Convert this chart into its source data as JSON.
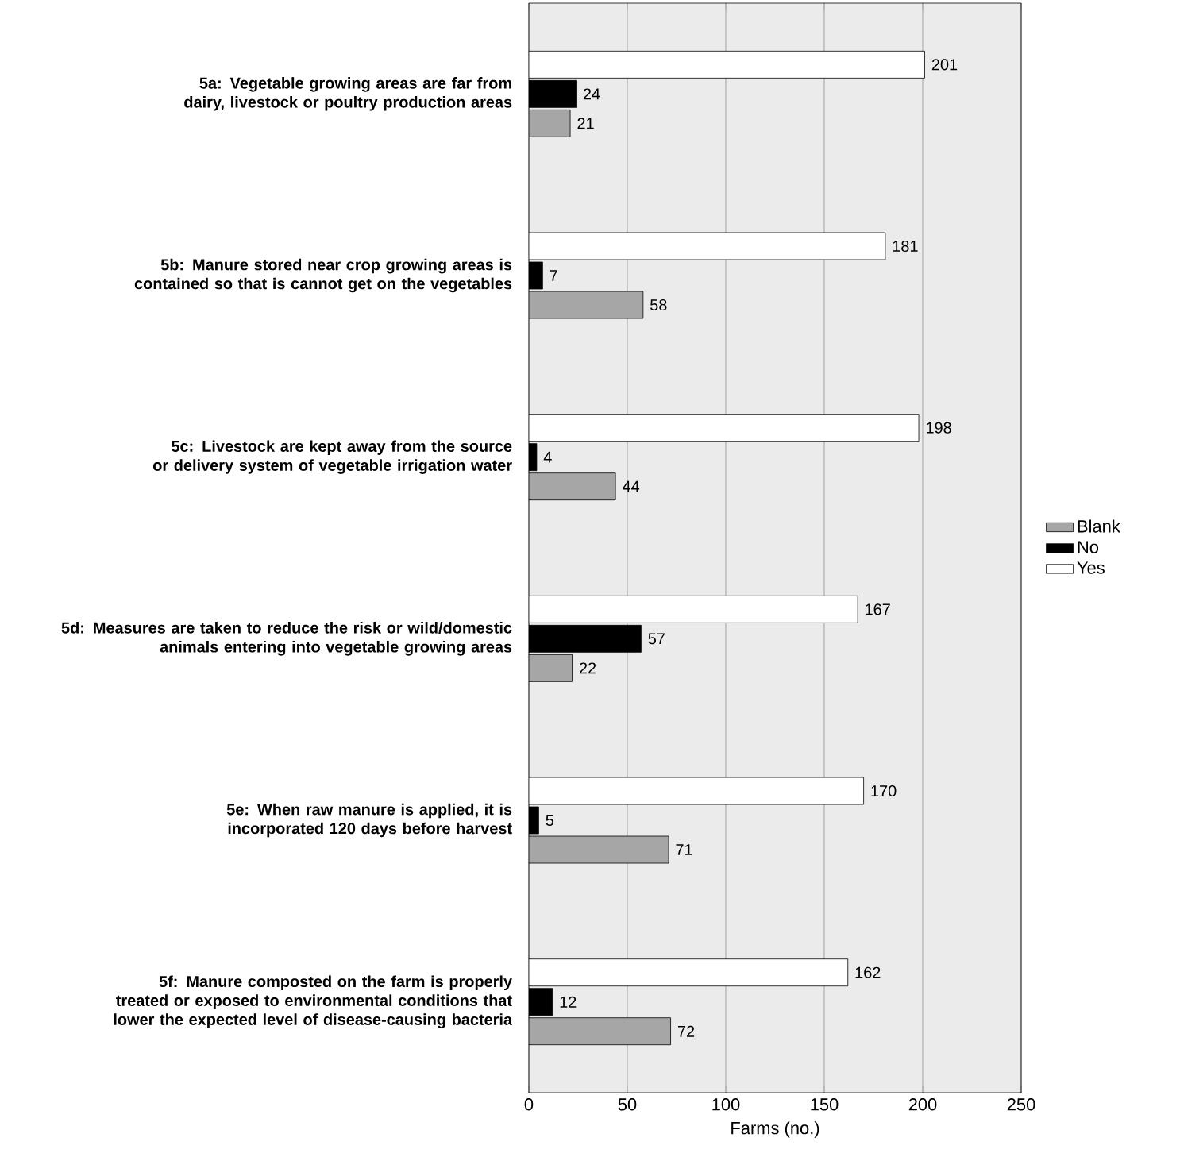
{
  "chart_data": {
    "type": "bar",
    "orientation": "horizontal",
    "xlabel": "Farms (no.)",
    "categories": [
      "5a: Vegetable growing areas are far from dairy, livestock or poultry production areas",
      "5b: Manure stored near crop growing areas is contained so that is cannot get on the vegetables",
      "5c: Livestock are kept away from the source or delivery system of vegetable irrigation water",
      "5d: Measures are taken to reduce the risk or wild/domestic animals entering into vegetable growing areas",
      "5e: When raw manure is applied, it is incorporated 120 days before harvest",
      "5f: Manure composted on the farm is properly treated or exposed to environmental conditions that lower the expected level of disease-causing bacteria"
    ],
    "series": [
      {
        "name": "Blank",
        "color": "#a6a6a6",
        "values": [
          21,
          58,
          44,
          22,
          71,
          72
        ]
      },
      {
        "name": "No",
        "color": "#000000",
        "values": [
          24,
          7,
          4,
          57,
          5,
          12
        ]
      },
      {
        "name": "Yes",
        "color": "#ffffff",
        "values": [
          201,
          181,
          198,
          167,
          170,
          162
        ]
      }
    ],
    "xlim": [
      0,
      250
    ],
    "xticks": [
      0,
      50,
      100,
      150,
      200,
      250
    ],
    "grid": "x",
    "legend": "right",
    "data_labels": true
  }
}
